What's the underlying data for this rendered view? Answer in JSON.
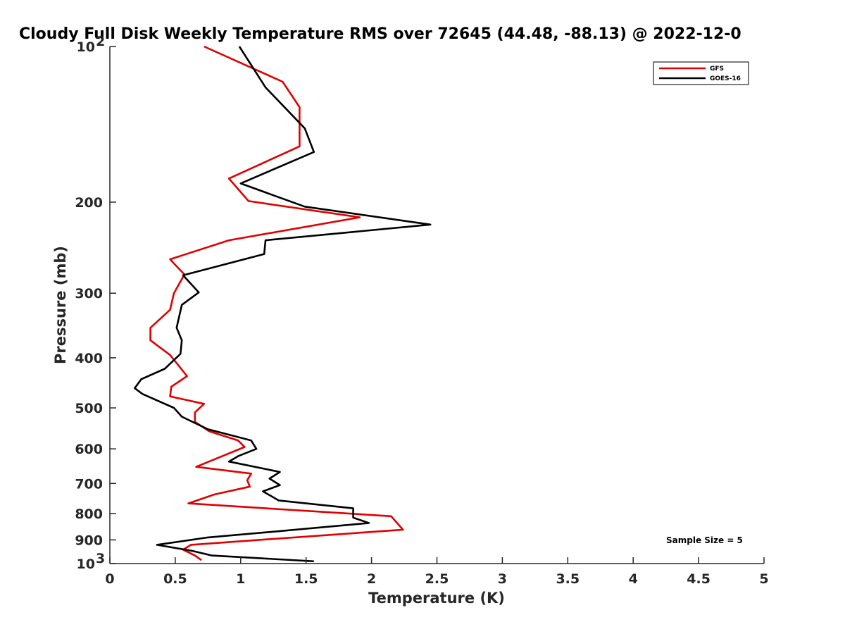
{
  "chart_data": {
    "type": "line",
    "title": "Cloudy Full Disk Weekly Temperature RMS over 72645 (44.48, -88.13) @ 2022-12-0",
    "xlabel": "Temperature (K)",
    "ylabel": "Pressure (mb)",
    "xlim": [
      0,
      5
    ],
    "ylim": [
      100,
      1000
    ],
    "y_scale": "log",
    "y_reversed": true,
    "x_ticks": [
      "0",
      "0.5",
      "1",
      "1.5",
      "2",
      "2.5",
      "3",
      "3.5",
      "4",
      "4.5",
      "5"
    ],
    "y_ticks": [
      {
        "value": 100,
        "label": "10",
        "exp": "2"
      },
      {
        "value": 200,
        "label": "200"
      },
      {
        "value": 300,
        "label": "300"
      },
      {
        "value": 400,
        "label": "400"
      },
      {
        "value": 500,
        "label": "500"
      },
      {
        "value": 600,
        "label": "600"
      },
      {
        "value": 700,
        "label": "700"
      },
      {
        "value": 800,
        "label": "800"
      },
      {
        "value": 900,
        "label": "900"
      },
      {
        "value": 1000,
        "label": "10",
        "exp": "3"
      }
    ],
    "grid": false,
    "legend_position": "top-right",
    "annotation": "Sample Size = 5",
    "series": [
      {
        "name": "GFS",
        "color": "#e00000",
        "points": [
          [
            0.72,
            100
          ],
          [
            1.32,
            117
          ],
          [
            1.45,
            131
          ],
          [
            1.45,
            156
          ],
          [
            0.91,
            180
          ],
          [
            1.06,
            199
          ],
          [
            1.91,
            214
          ],
          [
            0.91,
            237
          ],
          [
            0.46,
            258
          ],
          [
            0.57,
            276
          ],
          [
            0.49,
            300
          ],
          [
            0.46,
            323
          ],
          [
            0.31,
            350
          ],
          [
            0.31,
            370
          ],
          [
            0.46,
            395
          ],
          [
            0.59,
            434
          ],
          [
            0.47,
            455
          ],
          [
            0.46,
            475
          ],
          [
            0.72,
            491
          ],
          [
            0.65,
            510
          ],
          [
            0.65,
            532
          ],
          [
            0.76,
            555
          ],
          [
            0.98,
            578
          ],
          [
            1.03,
            595
          ],
          [
            0.66,
            650
          ],
          [
            1.08,
            670
          ],
          [
            1.05,
            690
          ],
          [
            1.07,
            710
          ],
          [
            0.8,
            735
          ],
          [
            0.6,
            765
          ],
          [
            2.15,
            810
          ],
          [
            2.24,
            860
          ],
          [
            0.62,
            920
          ],
          [
            0.56,
            940
          ],
          [
            0.65,
            965
          ],
          [
            0.7,
            985
          ]
        ]
      },
      {
        "name": "GOES-16",
        "color": "#000000",
        "points": [
          [
            0.99,
            100
          ],
          [
            1.19,
            120
          ],
          [
            1.49,
            144
          ],
          [
            1.56,
            160
          ],
          [
            1.0,
            184
          ],
          [
            1.49,
            204
          ],
          [
            2.45,
            221
          ],
          [
            1.19,
            237
          ],
          [
            1.18,
            252
          ],
          [
            0.56,
            277
          ],
          [
            0.68,
            299
          ],
          [
            0.55,
            316
          ],
          [
            0.51,
            350
          ],
          [
            0.55,
            370
          ],
          [
            0.54,
            393
          ],
          [
            0.42,
            420
          ],
          [
            0.24,
            440
          ],
          [
            0.19,
            458
          ],
          [
            0.25,
            470
          ],
          [
            0.49,
            500
          ],
          [
            0.55,
            520
          ],
          [
            0.75,
            550
          ],
          [
            1.08,
            578
          ],
          [
            1.12,
            600
          ],
          [
            0.98,
            620
          ],
          [
            0.91,
            635
          ],
          [
            1.3,
            665
          ],
          [
            1.22,
            685
          ],
          [
            1.3,
            705
          ],
          [
            1.17,
            725
          ],
          [
            1.29,
            755
          ],
          [
            1.86,
            782
          ],
          [
            1.86,
            815
          ],
          [
            1.98,
            835
          ],
          [
            1.2,
            870
          ],
          [
            0.75,
            890
          ],
          [
            0.36,
            920
          ],
          [
            0.63,
            945
          ],
          [
            0.78,
            965
          ],
          [
            1.56,
            990
          ]
        ]
      }
    ]
  }
}
